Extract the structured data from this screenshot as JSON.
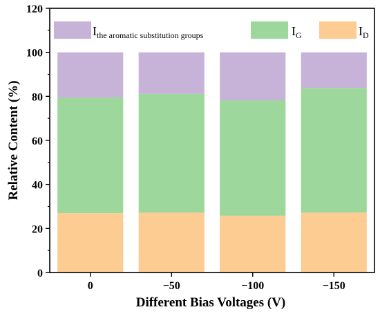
{
  "chart_data": {
    "type": "bar",
    "stacked": true,
    "categories": [
      "0",
      "−50",
      "−100",
      "−150"
    ],
    "series": [
      {
        "name": "I_D",
        "legend_main": "I",
        "legend_sub": "D",
        "color": "#fdcc92",
        "values": [
          27,
          27.2,
          25.8,
          27.2
        ]
      },
      {
        "name": "I_G",
        "legend_main": "I",
        "legend_sub": "G",
        "color": "#9dd79b",
        "values": [
          52.5,
          53.9,
          52.4,
          56.6
        ]
      },
      {
        "name": "I_the aromatic substitution groups",
        "legend_main": "I",
        "legend_sub": "the aromatic substitution groups",
        "color": "#c7b3d8",
        "values": [
          20.5,
          18.9,
          21.8,
          16.2
        ]
      }
    ],
    "xlabel": "Different Bias Voltages (V)",
    "ylabel": "Relative Content (%)",
    "ylim": [
      0,
      120
    ],
    "yticks": [
      0,
      20,
      40,
      60,
      80,
      100,
      120
    ],
    "legend": "top",
    "grid": false
  }
}
